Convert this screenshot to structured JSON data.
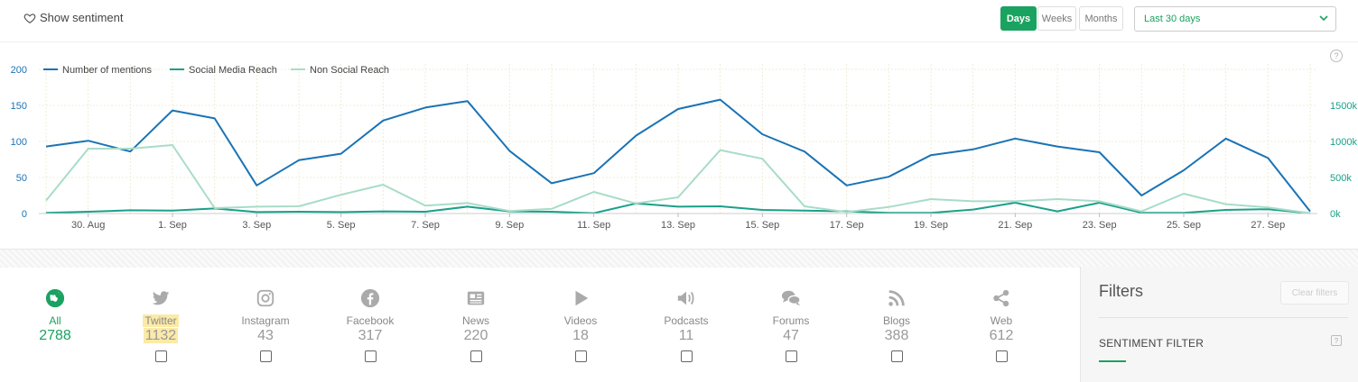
{
  "toolbar": {
    "show_sentiment": "Show sentiment",
    "ranges": [
      "Days",
      "Weeks",
      "Months"
    ],
    "active_range": "Days",
    "period": "Last 30 days",
    "help": "?"
  },
  "colors": {
    "accent": "#1aa260",
    "mentions": "#1a73b5",
    "social": "#1aa08a",
    "nonsocial": "#a8dcc8"
  },
  "chart_data": {
    "type": "line",
    "legend_position": "top-left",
    "grid": true,
    "x": [
      "29. Aug",
      "30. Aug",
      "31. Aug",
      "1. Sep",
      "2. Sep",
      "3. Sep",
      "4. Sep",
      "5. Sep",
      "6. Sep",
      "7. Sep",
      "8. Sep",
      "9. Sep",
      "10. Sep",
      "11. Sep",
      "12. Sep",
      "13. Sep",
      "14. Sep",
      "15. Sep",
      "16. Sep",
      "17. Sep",
      "18. Sep",
      "19. Sep",
      "20. Sep",
      "21. Sep",
      "22. Sep",
      "23. Sep",
      "24. Sep",
      "25. Sep",
      "26. Sep",
      "27. Sep",
      "28. Sep"
    ],
    "x_tick_labels": [
      "30. Aug",
      "1. Sep",
      "3. Sep",
      "5. Sep",
      "7. Sep",
      "9. Sep",
      "11. Sep",
      "13. Sep",
      "15. Sep",
      "17. Sep",
      "19. Sep",
      "21. Sep",
      "23. Sep",
      "25. Sep",
      "27. Sep"
    ],
    "y_left": {
      "ticks": [
        "0",
        "50",
        "100",
        "150",
        "200"
      ],
      "lim": [
        0,
        200
      ]
    },
    "y_right": {
      "ticks": [
        "0k",
        "500k",
        "1000k",
        "1500k"
      ],
      "lim": [
        0,
        2000000
      ]
    },
    "series": [
      {
        "name": "Number of mentions",
        "axis": "left",
        "values": [
          93,
          101,
          86,
          143,
          132,
          39,
          74,
          83,
          129,
          147,
          156,
          87,
          42,
          56,
          108,
          145,
          158,
          110,
          86,
          39,
          51,
          81,
          89,
          104,
          93,
          85,
          25,
          60,
          104,
          77,
          3
        ]
      },
      {
        "name": "Social Media Reach",
        "axis": "right",
        "values": [
          10000,
          25000,
          45000,
          40000,
          70000,
          20000,
          25000,
          20000,
          30000,
          25000,
          95000,
          30000,
          25000,
          5000,
          140000,
          95000,
          100000,
          50000,
          40000,
          30000,
          10000,
          10000,
          55000,
          150000,
          30000,
          150000,
          10000,
          10000,
          50000,
          60000,
          5000
        ]
      },
      {
        "name": "Non Social Reach",
        "axis": "right",
        "values": [
          180000,
          900000,
          900000,
          950000,
          75000,
          95000,
          100000,
          260000,
          400000,
          110000,
          145000,
          35000,
          65000,
          300000,
          140000,
          225000,
          880000,
          760000,
          100000,
          20000,
          90000,
          200000,
          170000,
          170000,
          200000,
          170000,
          30000,
          275000,
          130000,
          85000,
          5000
        ]
      }
    ]
  },
  "sources": [
    {
      "label": "All",
      "count": "2788",
      "icon": "globe-icon"
    },
    {
      "label": "Twitter",
      "count": "1132",
      "icon": "twitter-icon"
    },
    {
      "label": "Instagram",
      "count": "43",
      "icon": "instagram-icon"
    },
    {
      "label": "Facebook",
      "count": "317",
      "icon": "facebook-icon"
    },
    {
      "label": "News",
      "count": "220",
      "icon": "news-icon"
    },
    {
      "label": "Videos",
      "count": "18",
      "icon": "video-icon"
    },
    {
      "label": "Podcasts",
      "count": "11",
      "icon": "podcast-icon"
    },
    {
      "label": "Forums",
      "count": "47",
      "icon": "forum-icon"
    },
    {
      "label": "Blogs",
      "count": "388",
      "icon": "rss-icon"
    },
    {
      "label": "Web",
      "count": "612",
      "icon": "share-icon"
    }
  ],
  "filters": {
    "title": "Filters",
    "clear": "Clear filters",
    "sentiment_filter": "SENTIMENT FILTER",
    "help": "?"
  }
}
